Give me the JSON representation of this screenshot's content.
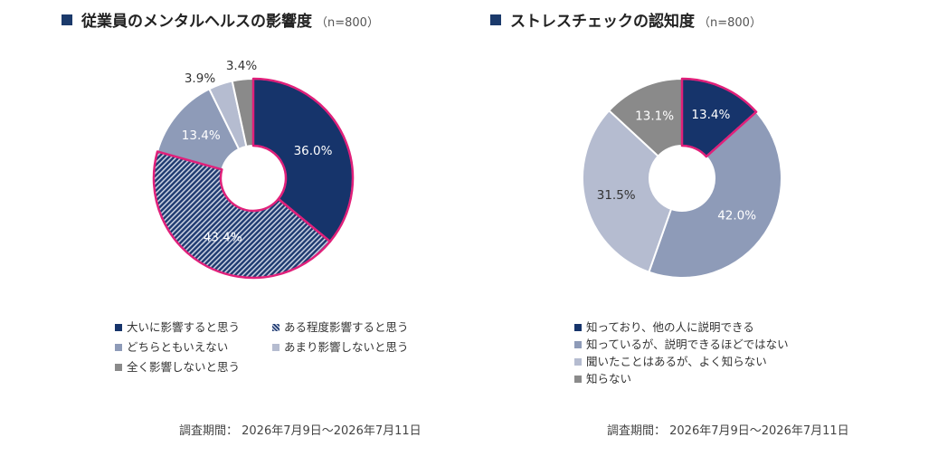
{
  "chart_data": [
    {
      "type": "pie",
      "title": "従業員のメンタルヘルスの影響度",
      "sample": "（n=800）",
      "categories": [
        "大いに影響すると思う",
        "ある程度影響すると思う",
        "どちらともいえない",
        "あまり影響しないと思う",
        "全く影響しないと思う"
      ],
      "values": [
        36.0,
        43.4,
        13.4,
        3.9,
        3.4
      ],
      "labels": [
        "36.0%",
        "43.4%",
        "13.4%",
        "3.9%",
        "3.4%"
      ],
      "colors": [
        "#16346b",
        "#8e9bb8",
        "#8e9bb8",
        "#b5bcd0",
        "#8a8a8a"
      ],
      "patterns": [
        "solid",
        "hatch",
        "solid",
        "solid",
        "solid"
      ],
      "highlight_color": "#e0207a",
      "highlighted": [
        0,
        1
      ],
      "legend_position": "bottom",
      "period": "調査期間： 2026年7月9日～2026年7月11日"
    },
    {
      "type": "pie",
      "title": "ストレスチェックの認知度",
      "sample": "（n=800）",
      "categories": [
        "知っており、他の人に説明できる",
        "知っているが、説明できるほどではない",
        "聞いたことはあるが、よく知らない",
        "知らない"
      ],
      "values": [
        13.4,
        42.0,
        31.5,
        13.1
      ],
      "labels": [
        "13.4%",
        "42.0%",
        "31.5%",
        "13.1%"
      ],
      "colors": [
        "#16346b",
        "#8e9bb8",
        "#b5bcd0",
        "#8a8a8a"
      ],
      "patterns": [
        "solid",
        "solid",
        "solid",
        "solid"
      ],
      "highlight_color": "#e0207a",
      "highlighted": [
        0
      ],
      "legend_position": "bottom",
      "period": "調査期間： 2026年7月9日～2026年7月11日"
    }
  ]
}
